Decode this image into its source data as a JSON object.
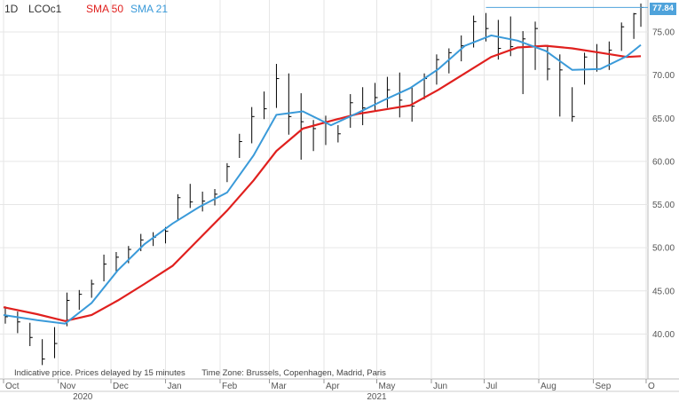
{
  "header": {
    "interval": "1D",
    "ric": "LCOc1",
    "sma50_label": "SMA 50",
    "sma21_label": "SMA 21"
  },
  "footer_note": {
    "price_note": "Indicative price. Prices delayed by 15 minutes",
    "timezone": "Time Zone: Brussels, Copenhagen, Madrid, Paris"
  },
  "last_price": "77.84",
  "colors": {
    "price": "#000000",
    "sma50": "#e0201e",
    "sma21": "#3a9ad9",
    "grid": "#e6e6e6",
    "last": "#4fa3db"
  },
  "chart_data": {
    "type": "line",
    "subtype": "ohlc-bars",
    "x_start": "2020-10-01",
    "x_end": "2021-09-30",
    "month_ticks": [
      {
        "label": "Oct",
        "date": "2020-10-01"
      },
      {
        "label": "Nov",
        "date": "2020-11-01"
      },
      {
        "label": "Dec",
        "date": "2020-12-01"
      },
      {
        "label": "Jan",
        "date": "2021-01-01"
      },
      {
        "label": "Feb",
        "date": "2021-02-01"
      },
      {
        "label": "Mar",
        "date": "2021-03-01"
      },
      {
        "label": "Apr",
        "date": "2021-04-01"
      },
      {
        "label": "May",
        "date": "2021-05-01"
      },
      {
        "label": "Jun",
        "date": "2021-06-01"
      },
      {
        "label": "Jul",
        "date": "2021-07-01"
      },
      {
        "label": "Aug",
        "date": "2021-08-01"
      },
      {
        "label": "Sep",
        "date": "2021-09-01"
      },
      {
        "label": "O",
        "date": "2021-10-01"
      }
    ],
    "year_labels": [
      {
        "label": "2020",
        "date": "2020-11-15"
      },
      {
        "label": "2021",
        "date": "2021-05-01"
      }
    ],
    "ylim": [
      35,
      78.5
    ],
    "y_ticks": [
      40,
      45,
      50,
      55,
      60,
      65,
      70,
      75
    ],
    "grid": true,
    "series": [
      {
        "name": "LCOc1",
        "x": [
          "2020-10-02",
          "2020-10-09",
          "2020-10-16",
          "2020-10-23",
          "2020-10-30",
          "2020-11-06",
          "2020-11-13",
          "2020-11-20",
          "2020-11-27",
          "2020-12-04",
          "2020-12-11",
          "2020-12-18",
          "2020-12-25",
          "2021-01-01",
          "2021-01-08",
          "2021-01-15",
          "2021-01-22",
          "2021-01-29",
          "2021-02-05",
          "2021-02-12",
          "2021-02-19",
          "2021-02-26",
          "2021-03-05",
          "2021-03-12",
          "2021-03-19",
          "2021-03-26",
          "2021-04-02",
          "2021-04-09",
          "2021-04-16",
          "2021-04-23",
          "2021-04-30",
          "2021-05-07",
          "2021-05-14",
          "2021-05-21",
          "2021-05-28",
          "2021-06-04",
          "2021-06-11",
          "2021-06-18",
          "2021-06-25",
          "2021-07-02",
          "2021-07-09",
          "2021-07-16",
          "2021-07-23",
          "2021-07-30",
          "2021-08-06",
          "2021-08-13",
          "2021-08-20",
          "2021-08-27",
          "2021-09-03",
          "2021-09-10",
          "2021-09-17",
          "2021-09-24",
          "2021-09-28"
        ],
        "high": [
          43.2,
          42.6,
          41.3,
          39.4,
          40.8,
          44.8,
          45.1,
          46.3,
          49.2,
          49.5,
          50.2,
          51.6,
          51.8,
          52.4,
          56.2,
          57.4,
          56.5,
          56.8,
          59.8,
          63.2,
          66.3,
          68.1,
          71.3,
          70.2,
          67.9,
          64.8,
          65.3,
          64.2,
          67.8,
          68.6,
          69.1,
          69.8,
          70.3,
          68.6,
          70.2,
          72.4,
          73.1,
          74.6,
          76.9,
          77.2,
          76.4,
          76.8,
          75.1,
          76.2,
          73.5,
          72.4,
          68.6,
          72.6,
          73.6,
          73.9,
          76.1,
          77.2,
          78.3
        ],
        "low": [
          41.2,
          40.1,
          38.6,
          36.4,
          37.2,
          40.9,
          42.8,
          44.2,
          46.1,
          47.2,
          48.2,
          49.6,
          50.2,
          50.5,
          53.2,
          54.6,
          54.2,
          54.9,
          57.6,
          60.4,
          62.1,
          64.9,
          66.2,
          63.1,
          60.2,
          61.2,
          61.9,
          62.2,
          63.9,
          64.2,
          65.8,
          66.2,
          65.1,
          64.6,
          67.2,
          68.9,
          70.2,
          71.6,
          73.2,
          73.9,
          71.8,
          72.2,
          67.8,
          70.6,
          69.4,
          65.2,
          64.6,
          68.9,
          70.4,
          70.6,
          72.8,
          74.2,
          75.6
        ],
        "close": [
          42.0,
          41.4,
          39.6,
          37.1,
          38.9,
          43.9,
          44.6,
          45.8,
          48.1,
          48.9,
          49.8,
          50.9,
          51.2,
          51.9,
          55.8,
          55.3,
          55.4,
          56.2,
          59.4,
          62.3,
          65.2,
          66.1,
          69.6,
          65.2,
          64.6,
          63.8,
          64.6,
          63.2,
          66.8,
          66.2,
          67.4,
          68.3,
          67.1,
          66.4,
          69.6,
          71.8,
          72.6,
          73.4,
          76.2,
          75.4,
          73.1,
          73.3,
          74.2,
          75.4,
          70.7,
          70.6,
          65.2,
          72.1,
          72.6,
          72.9,
          75.6,
          77.1,
          77.84
        ]
      },
      {
        "name": "SMA 50",
        "x": [
          "2020-10-01",
          "2020-10-20",
          "2020-11-05",
          "2020-11-20",
          "2020-12-05",
          "2020-12-20",
          "2021-01-05",
          "2021-01-20",
          "2021-02-05",
          "2021-02-20",
          "2021-03-05",
          "2021-03-20",
          "2021-04-05",
          "2021-04-20",
          "2021-05-05",
          "2021-05-20",
          "2021-06-05",
          "2021-06-20",
          "2021-07-05",
          "2021-07-20",
          "2021-08-05",
          "2021-08-20",
          "2021-09-05",
          "2021-09-20",
          "2021-09-28"
        ],
        "values": [
          43.1,
          42.3,
          41.5,
          42.2,
          43.9,
          45.8,
          47.9,
          51.0,
          54.3,
          57.8,
          61.2,
          63.8,
          64.7,
          65.5,
          66.0,
          66.5,
          68.3,
          70.2,
          72.1,
          73.2,
          73.4,
          73.1,
          72.6,
          72.1,
          72.2
        ]
      },
      {
        "name": "SMA 21",
        "x": [
          "2020-10-01",
          "2020-10-20",
          "2020-11-05",
          "2020-11-20",
          "2020-12-05",
          "2020-12-20",
          "2021-01-05",
          "2021-01-20",
          "2021-02-05",
          "2021-02-20",
          "2021-03-05",
          "2021-03-20",
          "2021-04-05",
          "2021-04-20",
          "2021-05-05",
          "2021-05-20",
          "2021-06-05",
          "2021-06-20",
          "2021-07-05",
          "2021-07-20",
          "2021-08-05",
          "2021-08-20",
          "2021-09-05",
          "2021-09-20",
          "2021-09-28"
        ],
        "values": [
          42.2,
          41.6,
          41.2,
          43.6,
          47.4,
          50.4,
          52.8,
          54.7,
          56.4,
          60.7,
          65.4,
          65.8,
          64.2,
          65.6,
          67.1,
          68.5,
          70.7,
          73.4,
          74.6,
          74.0,
          72.8,
          70.6,
          70.7,
          72.2,
          73.5
        ]
      }
    ]
  }
}
